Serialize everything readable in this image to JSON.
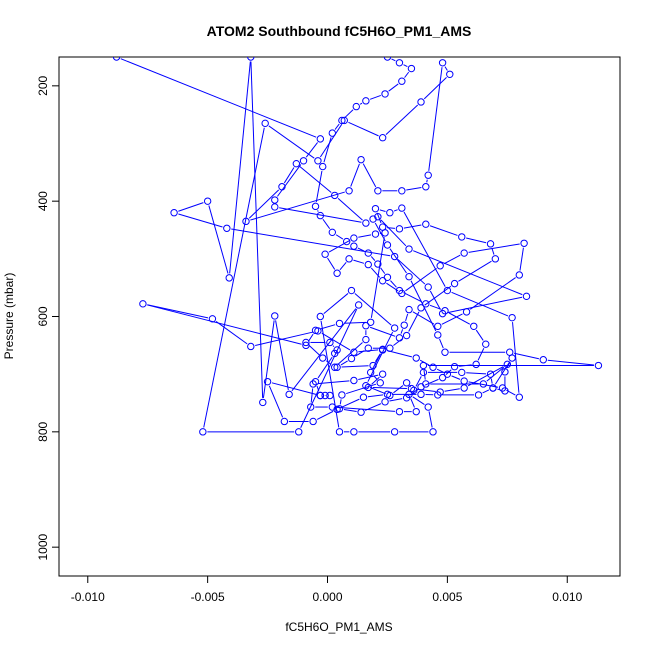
{
  "chart_data": {
    "type": "line",
    "title": "ATOM2 Southbound fC5H6O_PM1_AMS",
    "xlabel": "fC5H6O_PM1_AMS",
    "ylabel": "Pressure (mbar)",
    "xlim": [
      -0.0112,
      0.0122
    ],
    "ylim": [
      1050,
      150
    ],
    "y_reversed": true,
    "grid": false,
    "x_ticks": [
      -0.01,
      -0.005,
      0.0,
      0.005,
      0.01
    ],
    "x_tick_labels": [
      "-0.010",
      "-0.005",
      "0.000",
      "0.005",
      "0.010"
    ],
    "y_ticks": [
      200,
      400,
      600,
      800,
      1000
    ],
    "y_tick_labels": [
      "200",
      "400",
      "600",
      "800",
      "1000"
    ],
    "series": [
      {
        "color": "#0000ff",
        "marker": "open-circle",
        "points": [
          [
            -0.0088,
            150
          ],
          [
            -0.0003,
            292
          ],
          [
            -0.001,
            330
          ],
          [
            -0.0022,
            398
          ],
          [
            -0.0022,
            410
          ],
          [
            0.0016,
            438
          ],
          [
            0.0003,
            390
          ],
          [
            -0.0013,
            335
          ],
          [
            -0.0019,
            375
          ],
          [
            -0.0034,
            435
          ],
          [
            0.0009,
            382
          ],
          [
            0.0014,
            328
          ],
          [
            0.0021,
            382
          ],
          [
            0.0031,
            382
          ],
          [
            0.0041,
            375
          ],
          [
            0.0042,
            355
          ],
          [
            0.0048,
            160
          ],
          [
            0.0051,
            180
          ],
          [
            0.0039,
            228
          ],
          [
            0.0023,
            290
          ],
          [
            0.0007,
            260
          ],
          [
            -0.0004,
            330
          ],
          [
            -0.0026,
            265
          ],
          [
            -0.0052,
            800
          ],
          [
            -0.0012,
            800
          ],
          [
            0.0013,
            580
          ],
          [
            -0.0016,
            735
          ],
          [
            -0.0022,
            599
          ],
          [
            -0.0027,
            749
          ],
          [
            -0.0032,
            150
          ],
          [
            -0.0041,
            533
          ],
          [
            -0.005,
            400
          ],
          [
            -0.0064,
            420
          ],
          [
            -0.0042,
            447
          ],
          [
            0.0028,
            496
          ],
          [
            0.0042,
            549
          ],
          [
            0.0048,
            595
          ],
          [
            0.0083,
            565
          ],
          [
            0.0034,
            483
          ],
          [
            0.0021,
            427
          ],
          [
            0.0019,
            431
          ],
          [
            0.0025,
            476
          ],
          [
            0.0034,
            531
          ],
          [
            0.0046,
            632
          ],
          [
            0.0049,
            662
          ],
          [
            0.0076,
            662
          ],
          [
            0.009,
            675
          ],
          [
            0.0113,
            685
          ],
          [
            0.004,
            685
          ],
          [
            0.0041,
            717
          ],
          [
            0.0065,
            717
          ],
          [
            0.0075,
            683
          ],
          [
            0.0057,
            724
          ],
          [
            0.0047,
            731
          ],
          [
            0.0035,
            725
          ],
          [
            0.0017,
            723
          ],
          [
            0.0023,
            700
          ],
          [
            0.0011,
            711
          ],
          [
            -0.0006,
            717
          ],
          [
            -0.0007,
            757
          ],
          [
            0.0002,
            757
          ],
          [
            0.003,
            765
          ],
          [
            0.0037,
            765
          ],
          [
            0.0034,
            735
          ],
          [
            0.0042,
            757
          ],
          [
            0.0044,
            800
          ],
          [
            0.0028,
            800
          ],
          [
            0.0011,
            800
          ],
          [
            0.0005,
            800
          ],
          [
            -0.0003,
            600
          ],
          [
            0.001,
            555
          ],
          [
            0.0028,
            620
          ],
          [
            0.0016,
            720
          ],
          [
            0.0026,
            737
          ],
          [
            0.0033,
            715
          ],
          [
            0.0036,
            728
          ],
          [
            0.004,
            697
          ],
          [
            0.0056,
            697
          ],
          [
            0.0068,
            700
          ],
          [
            0.0069,
            724
          ],
          [
            0.0074,
            729
          ],
          [
            0.0074,
            696
          ],
          [
            0.0077,
            672
          ],
          [
            0.0069,
            724
          ],
          [
            0.0063,
            736
          ],
          [
            0.0046,
            736
          ],
          [
            0.0039,
            735
          ],
          [
            0.0025,
            735
          ],
          [
            0.0015,
            740
          ],
          [
            0.0004,
            761
          ],
          [
            -0.0006,
            782
          ],
          [
            -0.0018,
            782
          ],
          [
            -0.0025,
            713
          ],
          [
            -0.0003,
            737
          ],
          [
            -0.0001,
            737
          ],
          [
            0.0001,
            737
          ],
          [
            -0.0003,
            737
          ],
          [
            -0.0005,
            713
          ],
          [
            0.0003,
            664
          ],
          [
            0.0004,
            658
          ],
          [
            0.0001,
            645
          ],
          [
            -0.0009,
            645
          ],
          [
            -0.0002,
            672
          ],
          [
            0.0003,
            688
          ],
          [
            0.0016,
            640
          ],
          [
            0.0016,
            616
          ],
          [
            0.003,
            637
          ],
          [
            0.0032,
            615
          ],
          [
            0.0034,
            588
          ],
          [
            0.0046,
            617
          ],
          [
            0.0058,
            592
          ],
          [
            0.008,
            528
          ],
          [
            0.0082,
            473
          ],
          [
            0.0057,
            490
          ],
          [
            0.0047,
            512
          ],
          [
            0.0031,
            560
          ],
          [
            0.0023,
            538
          ],
          [
            0.0017,
            510
          ],
          [
            0.0009,
            500
          ],
          [
            0.0004,
            525
          ],
          [
            -0.0001,
            492
          ],
          [
            0.0011,
            464
          ],
          [
            0.002,
            457
          ],
          [
            0.0024,
            455
          ],
          [
            0.0018,
            610
          ],
          [
            0.0005,
            612
          ],
          [
            -0.0005,
            624
          ],
          [
            -0.0009,
            650
          ],
          [
            -0.0077,
            578
          ],
          [
            -0.0048,
            604
          ],
          [
            -0.0032,
            652
          ],
          [
            -0.0004,
            625
          ],
          [
            0.0011,
            662
          ],
          [
            0.0023,
            657
          ],
          [
            0.0037,
            672
          ],
          [
            0.0044,
            688
          ],
          [
            0.005,
            700
          ],
          [
            0.0057,
            712
          ],
          [
            0.0073,
            724
          ],
          [
            0.008,
            740
          ],
          [
            0.0077,
            602
          ],
          [
            0.005,
            555
          ],
          [
            0.0031,
            412
          ],
          [
            0.0026,
            420
          ],
          [
            0.002,
            413
          ],
          [
            0.0023,
            445
          ],
          [
            0.003,
            448
          ],
          [
            0.0041,
            440
          ],
          [
            0.0056,
            462
          ],
          [
            0.0068,
            474
          ],
          [
            0.007,
            500
          ],
          [
            0.0053,
            543
          ],
          [
            0.0039,
            585
          ],
          [
            0.0033,
            633
          ],
          [
            0.0026,
            655
          ],
          [
            0.0017,
            655
          ],
          [
            0.001,
            673
          ],
          [
            0.0004,
            688
          ],
          [
            0.0019,
            685
          ],
          [
            0.0023,
            658
          ],
          [
            0.0018,
            697
          ],
          [
            0.0022,
            715
          ],
          [
            0.0006,
            736
          ],
          [
            0.0005,
            760
          ],
          [
            0.0014,
            766
          ],
          [
            0.0024,
            748
          ],
          [
            0.0033,
            741
          ],
          [
            0.0039,
            722
          ],
          [
            0.0048,
            706
          ],
          [
            0.0053,
            687
          ],
          [
            0.0062,
            683
          ],
          [
            0.0066,
            648
          ],
          [
            0.0061,
            617
          ],
          [
            0.0049,
            590
          ],
          [
            0.0041,
            578
          ],
          [
            0.003,
            555
          ],
          [
            0.0025,
            532
          ],
          [
            0.0021,
            509
          ],
          [
            0.0017,
            490
          ],
          [
            0.0011,
            478
          ],
          [
            0.0008,
            470
          ],
          [
            0.0002,
            454
          ],
          [
            -0.0003,
            425
          ],
          [
            -0.0005,
            409
          ],
          [
            -0.0002,
            340
          ],
          [
            0.0002,
            282
          ],
          [
            0.0006,
            260
          ],
          [
            0.0012,
            236
          ],
          [
            0.0016,
            226
          ],
          [
            0.0024,
            214
          ],
          [
            0.0031,
            192
          ],
          [
            0.0035,
            170
          ],
          [
            0.003,
            160
          ],
          [
            0.0025,
            150
          ]
        ]
      }
    ]
  }
}
